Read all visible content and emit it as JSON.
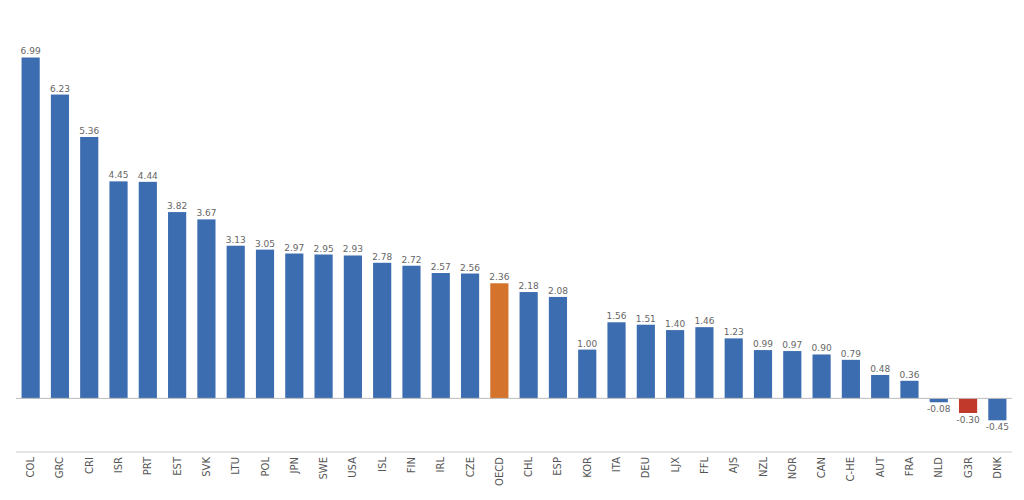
{
  "chart_data": {
    "type": "bar",
    "categories": [
      "COL",
      "GRC",
      "CRI",
      "ISR",
      "PRT",
      "EST",
      "SVK",
      "LTU",
      "POL",
      "JPN",
      "SWE",
      "USA",
      "ISL",
      "FIN",
      "IRL",
      "CZE",
      "OECD",
      "CHL",
      "ESP",
      "KOR",
      "ITA",
      "DEU",
      "LJX",
      "FFL",
      "AJS",
      "NZL",
      "NOR",
      "CAN",
      "C-HE",
      "AUT",
      "FRA",
      "NLD",
      "G3R",
      "DNK"
    ],
    "values": [
      6.99,
      6.23,
      5.36,
      4.45,
      4.44,
      3.82,
      3.67,
      3.13,
      3.05,
      2.97,
      2.95,
      2.93,
      2.78,
      2.72,
      2.57,
      2.56,
      2.36,
      2.18,
      2.08,
      1.0,
      1.56,
      1.51,
      1.4,
      1.46,
      1.23,
      0.99,
      0.97,
      0.9,
      0.79,
      0.48,
      0.36,
      -0.08,
      -0.3,
      -0.45
    ],
    "value_labels": [
      "6.99",
      "6.23",
      "5.36",
      "4.45",
      "4.44",
      "3.82",
      "3.67",
      "3.13",
      "3.05",
      "2.97",
      "2.95",
      "2.93",
      "2.78",
      "2.72",
      "2.57",
      "2.56",
      "2.36",
      "2.18",
      "2.08",
      "1.00",
      "1.56",
      "1.51",
      "1.40",
      "1.46",
      "1.23",
      "0.99",
      "0.97",
      "0.90",
      "0.79",
      "0.48",
      "0.36",
      "-0.08",
      "-0.30",
      "-0.45"
    ],
    "colors": [
      "#3C6DB0",
      "#3C6DB0",
      "#3C6DB0",
      "#3C6DB0",
      "#3C6DB0",
      "#3C6DB0",
      "#3C6DB0",
      "#3C6DB0",
      "#3C6DB0",
      "#3C6DB0",
      "#3C6DB0",
      "#3C6DB0",
      "#3C6DB0",
      "#3C6DB0",
      "#3C6DB0",
      "#3C6DB0",
      "#D4732B",
      "#3C6DB0",
      "#3C6DB0",
      "#3C6DB0",
      "#3C6DB0",
      "#3C6DB0",
      "#3C6DB0",
      "#3C6DB0",
      "#3C6DB0",
      "#3C6DB0",
      "#3C6DB0",
      "#3C6DB0",
      "#3C6DB0",
      "#3C6DB0",
      "#3C6DB0",
      "#3C6DB0",
      "#C0392B",
      "#3C6DB0"
    ],
    "ylim": [
      -1.1,
      7.8
    ],
    "data_labels": true,
    "tick_labels": "x",
    "grid": false
  }
}
